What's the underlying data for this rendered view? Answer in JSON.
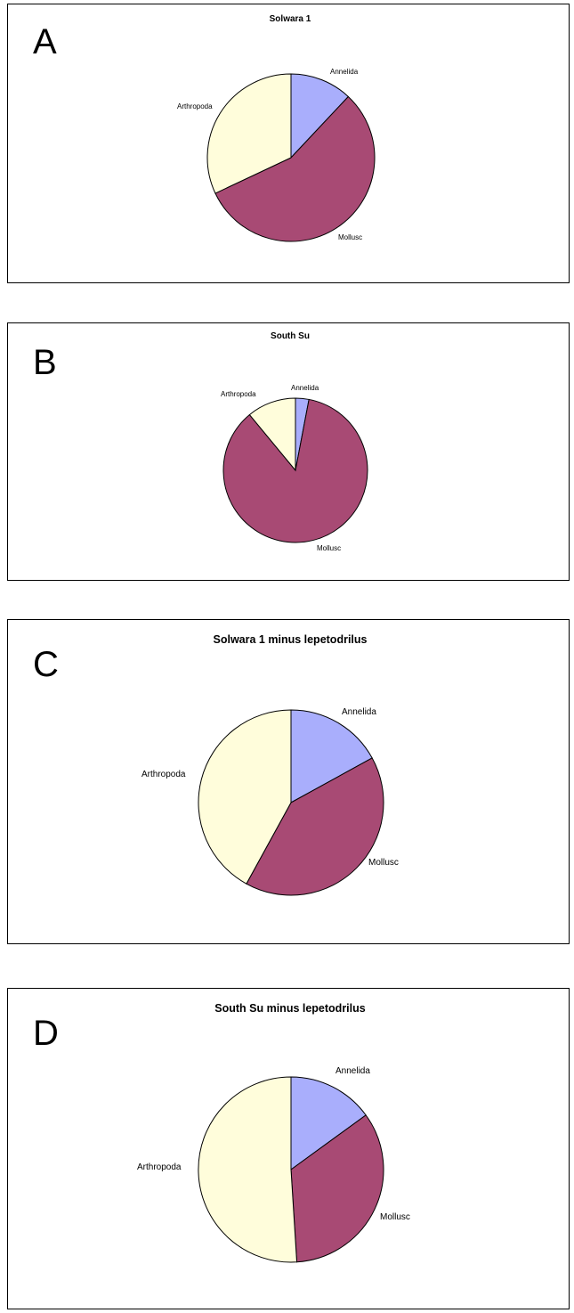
{
  "colors": {
    "Annelida": "#a9aefc",
    "Mollusc": "#a84a74",
    "Arthropoda": "#fffddb"
  },
  "chart_data": [
    {
      "type": "pie",
      "panel_label": "A",
      "title": "Solwara 1",
      "categories": [
        "Annelida",
        "Mollusc",
        "Arthropoda"
      ],
      "values": [
        12,
        56,
        32
      ]
    },
    {
      "type": "pie",
      "panel_label": "B",
      "title": "South Su",
      "categories": [
        "Annelida",
        "Mollusc",
        "Arthropoda"
      ],
      "values": [
        3,
        86,
        11
      ]
    },
    {
      "type": "pie",
      "panel_label": "C",
      "title": "Solwara 1 minus lepetodrilus",
      "categories": [
        "Annelida",
        "Mollusc",
        "Arthropoda"
      ],
      "values": [
        17,
        41,
        42
      ]
    },
    {
      "type": "pie",
      "panel_label": "D",
      "title": "South Su minus lepetodrilus",
      "categories": [
        "Annelida",
        "Mollusc",
        "Arthropoda"
      ],
      "values": [
        15,
        34,
        51
      ]
    }
  ]
}
